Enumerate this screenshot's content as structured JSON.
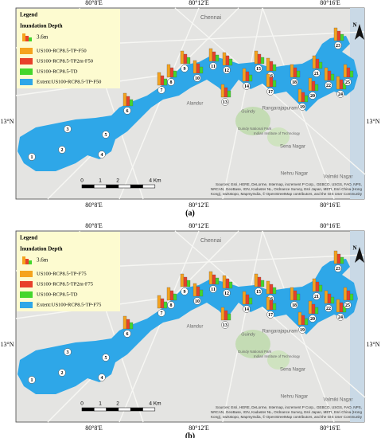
{
  "panels": [
    {
      "caption": "(a)",
      "legend": {
        "title": "Legend",
        "subtitle": "Inundation Depth",
        "scale_label": "3.6m",
        "entries": [
          "US100-RCP8.5-TP-F50",
          "US100-RCP8.5-TP2m-F50",
          "US100-RCP8.5-TD",
          "Extent:US100-RCP8.5-TP-F50"
        ]
      },
      "longitude_labels": [
        "80°8'E",
        "80°12'E",
        "80°16'E"
      ],
      "latitude_label": "13°N",
      "north": "N",
      "scale_bar": [
        "0",
        "1",
        "2",
        "4 Km"
      ],
      "attribution": [
        "Sources: Esri, HERE, DeLorme, Intermap, increment P Corp., GEBCO, USGS, FAO, NPS,",
        "NRCAN, GeoBase, IGN, Kadaster NL, Ordnance Survey, Esri Japan, METI, Esri China (Hong",
        "Kong), swisstopo, MapmyIndia, © OpenStreetMap contributors, and the GIS User Community"
      ],
      "places": [
        "Chennai",
        "Alandur",
        "Guindy",
        "Guindy National Park",
        "Indian Institute of Technology",
        "Rangarajapuram",
        "Sena Nagar",
        "Nehru Nagar",
        "Valmiki Nagar"
      ],
      "sites": [
        "1",
        "2",
        "3",
        "4",
        "5",
        "6",
        "7",
        "8",
        "9",
        "10",
        "11",
        "12",
        "13",
        "14",
        "15",
        "16",
        "17",
        "18",
        "19",
        "20",
        "21",
        "22",
        "23",
        "24",
        "25"
      ]
    },
    {
      "caption": "(b)",
      "legend": {
        "title": "Legend",
        "subtitle": "Inundation Depth",
        "scale_label": "3.6m",
        "entries": [
          "US100-RCP8.5-TP-F75",
          "US100-RCP8.5-TP2m-F75",
          "US100-RCP8.5-TD",
          "Extent:US100-RCP8.5-TP-F75"
        ]
      },
      "longitude_labels": [
        "80°8'E",
        "80°12'E",
        "80°16'E"
      ],
      "latitude_label": "13°N",
      "north": "N",
      "scale_bar": [
        "0",
        "1",
        "2",
        "4 Km"
      ],
      "attribution": [
        "Sources: Esri, HERE, DeLorme, Intermap, increment P Corp., GEBCO, USGS, FAO, NPS,",
        "NRCAN, GeoBase, IGN, Kadaster NL, Ordnance Survey, Esri Japan, METI, Esri China (Hong",
        "Kong), swisstopo, MapmyIndia, © OpenStreetMap contributors, and the GIS User Community"
      ],
      "places": [
        "Chennai",
        "Alandur",
        "Guindy",
        "Guindy National Park",
        "Indian Institute of Technology",
        "Rangarajapuram",
        "Sena Nagar",
        "Nehru Nagar",
        "Valmiki Nagar"
      ],
      "sites": [
        "1",
        "2",
        "3",
        "4",
        "5",
        "6",
        "7",
        "8",
        "9",
        "10",
        "11",
        "12",
        "13",
        "14",
        "15",
        "16",
        "17",
        "18",
        "19",
        "20",
        "21",
        "22",
        "23",
        "24",
        "25"
      ]
    }
  ]
}
